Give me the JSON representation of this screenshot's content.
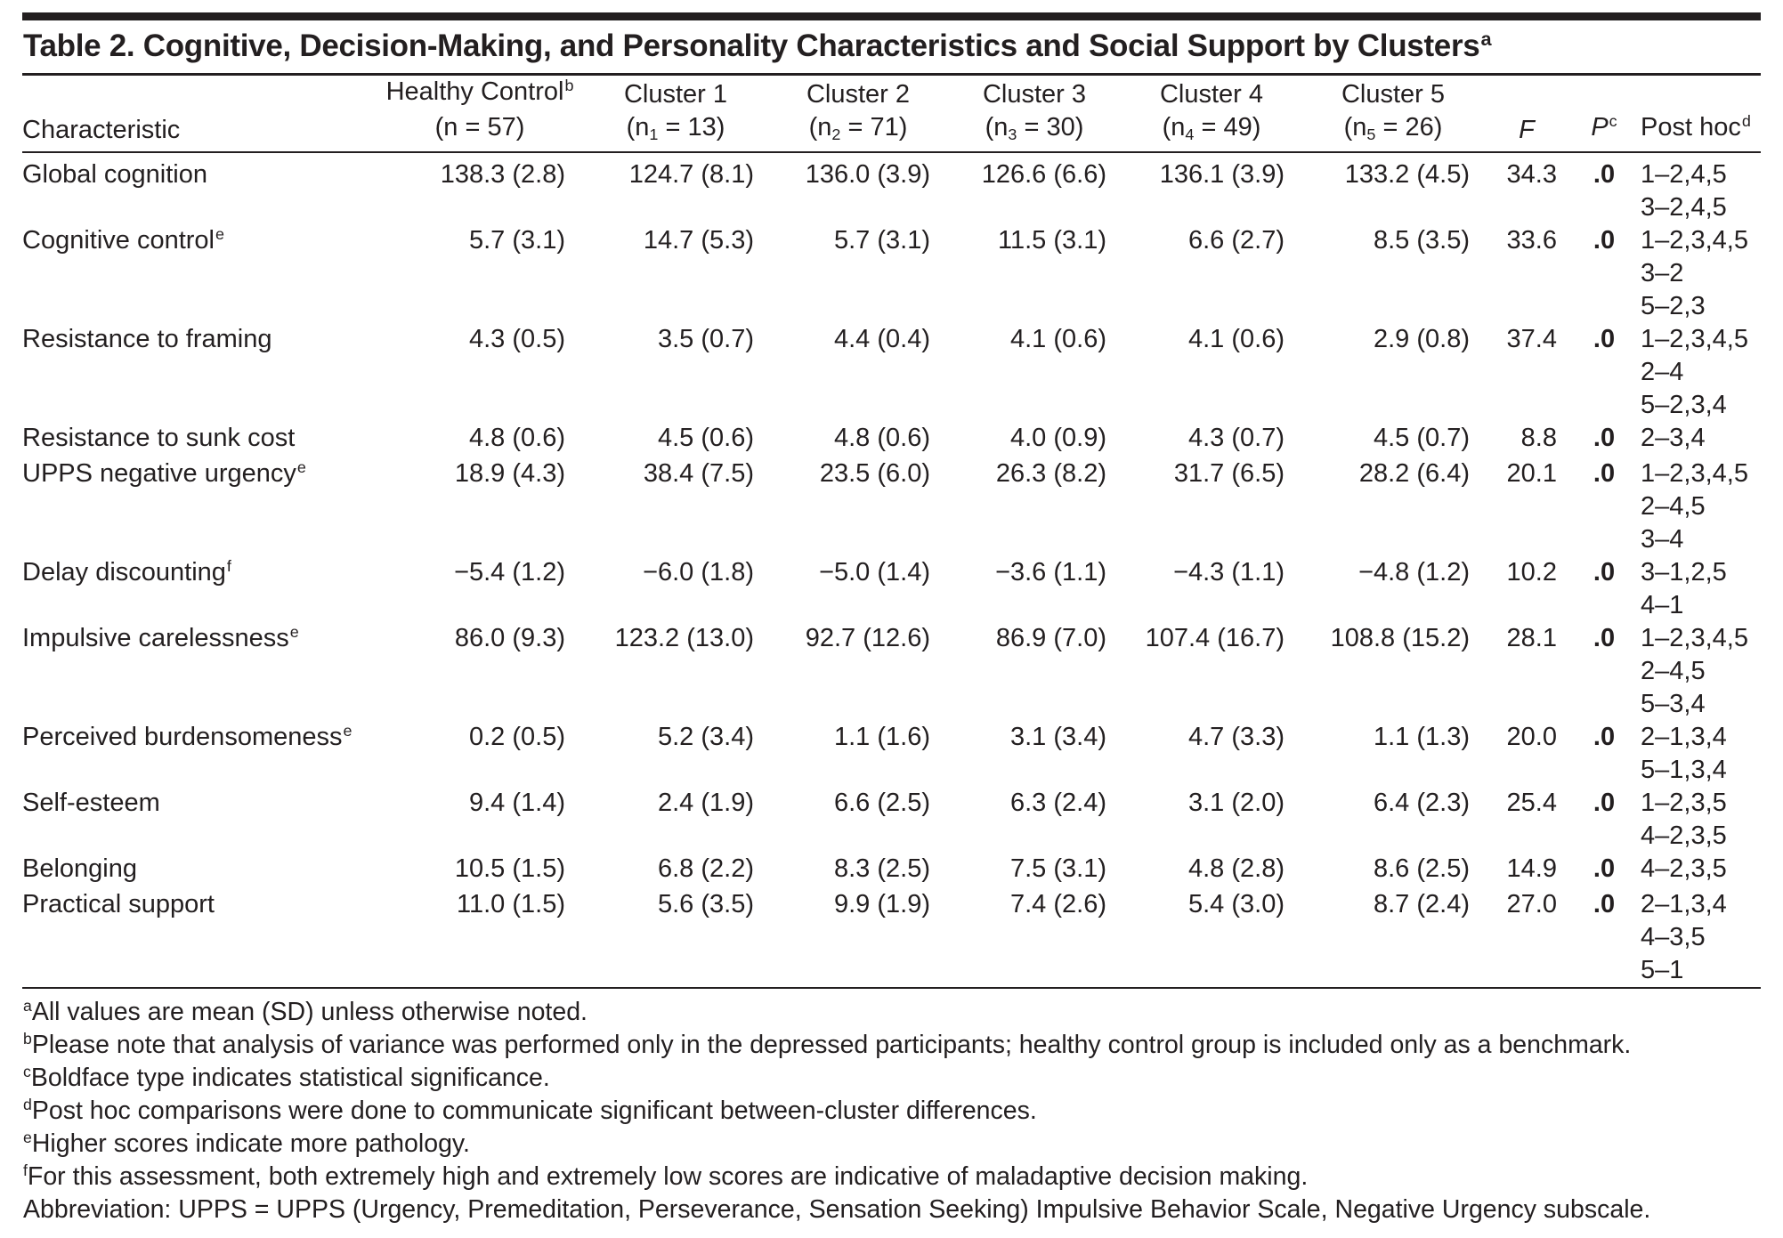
{
  "colors": {
    "text": "#231f20",
    "rule": "#231f20",
    "background": "#ffffff"
  },
  "table": {
    "title": "Table 2. Cognitive, Decision-Making, and Personality Characteristics and Social Support by Clusters",
    "title_sup": "a",
    "characteristic_header": "Characteristic",
    "group_headers": [
      {
        "line1": "Healthy Control",
        "sup": "b",
        "pre": "(n",
        "sub": "",
        "post": " = 57)"
      },
      {
        "line1": "Cluster 1",
        "sup": "",
        "pre": "(n",
        "sub": "1",
        "post": " = 13)"
      },
      {
        "line1": "Cluster 2",
        "sup": "",
        "pre": "(n",
        "sub": "2",
        "post": " = 71)"
      },
      {
        "line1": "Cluster 3",
        "sup": "",
        "pre": "(n",
        "sub": "3",
        "post": " = 30)"
      },
      {
        "line1": "Cluster 4",
        "sup": "",
        "pre": "(n",
        "sub": "4",
        "post": " = 49)"
      },
      {
        "line1": "Cluster 5",
        "sup": "",
        "pre": "(n",
        "sub": "5",
        "post": " = 26)"
      }
    ],
    "stat_headers": {
      "f": "F",
      "p": "P",
      "p_sup": "c",
      "posthoc": "Post hoc",
      "posthoc_sup": "d"
    },
    "rows": [
      {
        "label": "Global cognition",
        "sup": "",
        "values": [
          "138.3 (2.8)",
          "124.7 (8.1)",
          "136.0 (3.9)",
          "126.6 (6.6)",
          "136.1 (3.9)",
          "133.2 (4.5)"
        ],
        "f": "34.3",
        "p": ".0",
        "posthoc": [
          "1–2,4,5",
          "3–2,4,5"
        ]
      },
      {
        "label": "Cognitive control",
        "sup": "e",
        "values": [
          "5.7 (3.1)",
          "14.7 (5.3)",
          "5.7 (3.1)",
          "11.5 (3.1)",
          "6.6 (2.7)",
          "8.5 (3.5)"
        ],
        "f": "33.6",
        "p": ".0",
        "posthoc": [
          "1–2,3,4,5",
          "3–2",
          "5–2,3"
        ]
      },
      {
        "label": "Resistance to framing",
        "sup": "",
        "values": [
          "4.3 (0.5)",
          "3.5 (0.7)",
          "4.4 (0.4)",
          "4.1 (0.6)",
          "4.1 (0.6)",
          "2.9 (0.8)"
        ],
        "f": "37.4",
        "p": ".0",
        "posthoc": [
          "1–2,3,4,5",
          "2–4",
          "5–2,3,4"
        ]
      },
      {
        "label": "Resistance to sunk cost",
        "sup": "",
        "values": [
          "4.8 (0.6)",
          "4.5 (0.6)",
          "4.8 (0.6)",
          "4.0 (0.9)",
          "4.3 (0.7)",
          "4.5 (0.7)"
        ],
        "f": "8.8",
        "p": ".0",
        "posthoc": [
          "2–3,4"
        ]
      },
      {
        "label": "UPPS negative urgency",
        "sup": "e",
        "values": [
          "18.9 (4.3)",
          "38.4 (7.5)",
          "23.5 (6.0)",
          "26.3 (8.2)",
          "31.7 (6.5)",
          "28.2 (6.4)"
        ],
        "f": "20.1",
        "p": ".0",
        "posthoc": [
          "1–2,3,4,5",
          "2–4,5",
          "3–4"
        ]
      },
      {
        "label": "Delay discounting",
        "sup": "f",
        "values": [
          "−5.4 (1.2)",
          "−6.0 (1.8)",
          "−5.0 (1.4)",
          "−3.6 (1.1)",
          "−4.3 (1.1)",
          "−4.8 (1.2)"
        ],
        "f": "10.2",
        "p": ".0",
        "posthoc": [
          "3–1,2,5",
          "4–1"
        ]
      },
      {
        "label": "Impulsive carelessness",
        "sup": "e",
        "values": [
          "86.0 (9.3)",
          "123.2 (13.0)",
          "92.7 (12.6)",
          "86.9 (7.0)",
          "107.4 (16.7)",
          "108.8 (15.2)"
        ],
        "f": "28.1",
        "p": ".0",
        "posthoc": [
          "1–2,3,4,5",
          "2–4,5",
          "5–3,4"
        ]
      },
      {
        "label": "Perceived burdensomeness",
        "sup": "e",
        "values": [
          "0.2 (0.5)",
          "5.2 (3.4)",
          "1.1 (1.6)",
          "3.1 (3.4)",
          "4.7 (3.3)",
          "1.1 (1.3)"
        ],
        "f": "20.0",
        "p": ".0",
        "posthoc": [
          "2–1,3,4",
          "5–1,3,4"
        ]
      },
      {
        "label": "Self-esteem",
        "sup": "",
        "values": [
          "9.4 (1.4)",
          "2.4 (1.9)",
          "6.6 (2.5)",
          "6.3 (2.4)",
          "3.1 (2.0)",
          "6.4 (2.3)"
        ],
        "f": "25.4",
        "p": ".0",
        "posthoc": [
          "1–2,3,5",
          "4–2,3,5"
        ]
      },
      {
        "label": "Belonging",
        "sup": "",
        "values": [
          "10.5 (1.5)",
          "6.8 (2.2)",
          "8.3 (2.5)",
          "7.5 (3.1)",
          "4.8 (2.8)",
          "8.6 (2.5)"
        ],
        "f": "14.9",
        "p": ".0",
        "posthoc": [
          "4–2,3,5"
        ]
      },
      {
        "label": "Practical support",
        "sup": "",
        "values": [
          "11.0 (1.5)",
          "5.6 (3.5)",
          "9.9 (1.9)",
          "7.4 (2.6)",
          "5.4 (3.0)",
          "8.7 (2.4)"
        ],
        "f": "27.0",
        "p": ".0",
        "posthoc": [
          "2–1,3,4",
          "4–3,5",
          "5–1"
        ]
      }
    ]
  },
  "footnotes": [
    {
      "sup": "a",
      "text": "All values are mean (SD) unless otherwise noted."
    },
    {
      "sup": "b",
      "text": "Please note that analysis of variance was performed only in the depressed participants; healthy control group is included only as a benchmark."
    },
    {
      "sup": "c",
      "text": "Boldface type indicates statistical significance."
    },
    {
      "sup": "d",
      "text": "Post hoc comparisons were done to communicate significant between-cluster differences."
    },
    {
      "sup": "e",
      "text": "Higher scores indicate more pathology."
    },
    {
      "sup": "f",
      "text": "For this assessment, both extremely high and extremely low scores are indicative of maladaptive decision making."
    },
    {
      "sup": "",
      "text": "Abbreviation: UPPS = UPPS (Urgency, Premeditation, Perseverance, Sensation Seeking) Impulsive Behavior Scale, Negative Urgency subscale."
    }
  ]
}
